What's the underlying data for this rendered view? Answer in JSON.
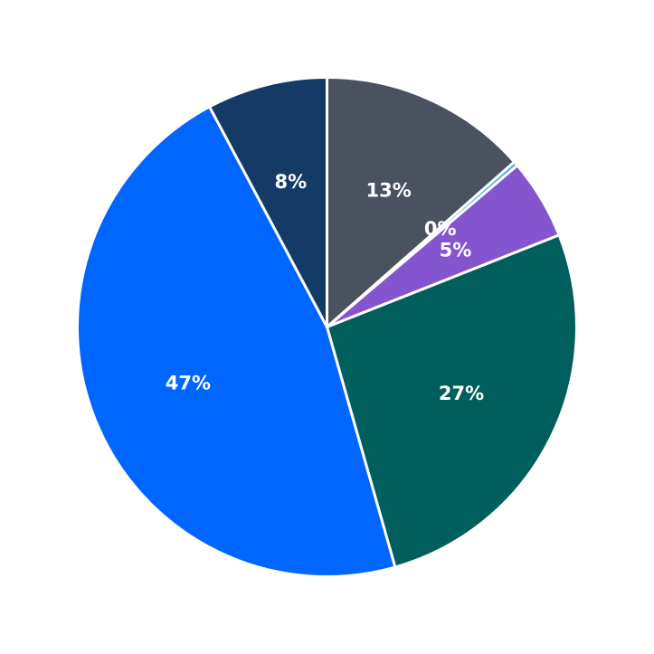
{
  "chart_data": {
    "type": "pie",
    "start": "top",
    "direction": "clockwise",
    "slices": [
      {
        "value": 13.5,
        "label": "13%",
        "color": "#4a5260"
      },
      {
        "value": 0.3,
        "label": "0%",
        "color": "#4aa3f0"
      },
      {
        "value": 5.2,
        "label": "5%",
        "color": "#8455cf"
      },
      {
        "value": 26.6,
        "label": "27%",
        "color": "#005e5d"
      },
      {
        "value": 46.6,
        "label": "47%",
        "color": "#0066ff"
      },
      {
        "value": 7.8,
        "label": "8%",
        "color": "#143a66"
      }
    ]
  }
}
